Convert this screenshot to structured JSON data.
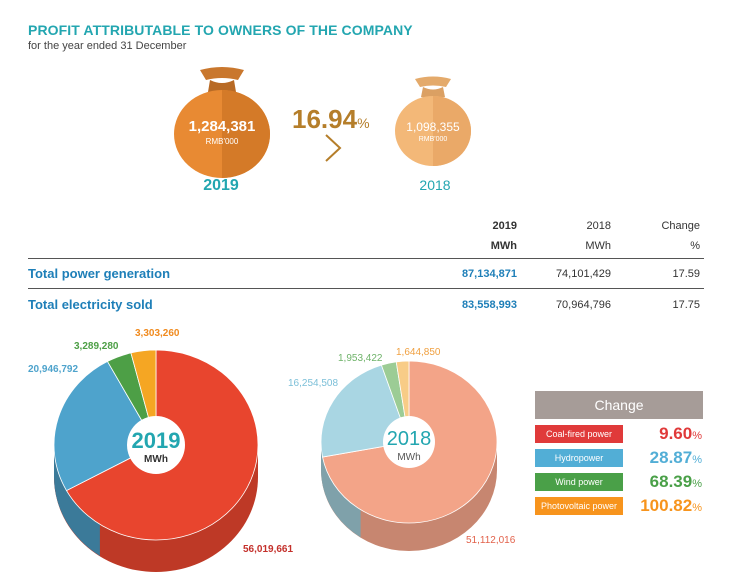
{
  "header": {
    "title": "PROFIT ATTRIBUTABLE TO OWNERS OF THE COMPANY",
    "subtitle": "for the year ended 31 December"
  },
  "profit": {
    "current": {
      "value": "1,284,381",
      "unit": "RMB'000",
      "year": "2019"
    },
    "previous": {
      "value": "1,098,355",
      "unit": "RMB'000",
      "year": "2018"
    },
    "change_value": "16.94",
    "change_unit": "%"
  },
  "table": {
    "headers": [
      {
        "year": "2019",
        "unit": "MWh"
      },
      {
        "year": "2018",
        "unit": "MWh"
      },
      {
        "year": "Change",
        "unit": "%"
      }
    ],
    "rows": [
      {
        "label": "Total power generation",
        "v2019": "87,134,871",
        "v2018": "74,101,429",
        "change": "17.59"
      },
      {
        "label": "Total electricity sold",
        "v2019": "83,558,993",
        "v2018": "70,964,796",
        "change": "17.75"
      }
    ]
  },
  "chart_data": [
    {
      "type": "pie",
      "center_label": "2019",
      "center_unit": "MWh",
      "categories": [
        "Coal-fired power",
        "Hydropower",
        "Wind power",
        "Photovoltaic power"
      ],
      "values": [
        56019661,
        20946792,
        3289280,
        3303260
      ],
      "labels": [
        "56,019,661",
        "20,946,792",
        "3,289,280",
        "3,303,260"
      ],
      "colors": [
        "#e8452e",
        "#4ea3cc",
        "#4d9f46",
        "#f5a623"
      ]
    },
    {
      "type": "pie",
      "center_label": "2018",
      "center_unit": "MWh",
      "categories": [
        "Coal-fired power",
        "Hydropower",
        "Wind power",
        "Photovoltaic power"
      ],
      "values": [
        51112016,
        16254508,
        1953422,
        1644850
      ],
      "labels": [
        "51,112,016",
        "16,254,508",
        "1,953,422",
        "1,644,850"
      ],
      "colors": [
        "#f3a488",
        "#a9d6e3",
        "#9ccc95",
        "#f8cc87"
      ]
    }
  ],
  "legend": {
    "title": "Change",
    "items": [
      {
        "label": "Coal-fired power",
        "value": "9.60",
        "unit": "%",
        "color": "#e03a3a"
      },
      {
        "label": "Hydropower",
        "value": "28.87",
        "unit": "%",
        "color": "#52aed6"
      },
      {
        "label": "Wind power",
        "value": "68.39",
        "unit": "%",
        "color": "#4aa048"
      },
      {
        "label": "Photovoltaic power",
        "value": "100.82",
        "unit": "%",
        "color": "#f7941d"
      }
    ]
  }
}
